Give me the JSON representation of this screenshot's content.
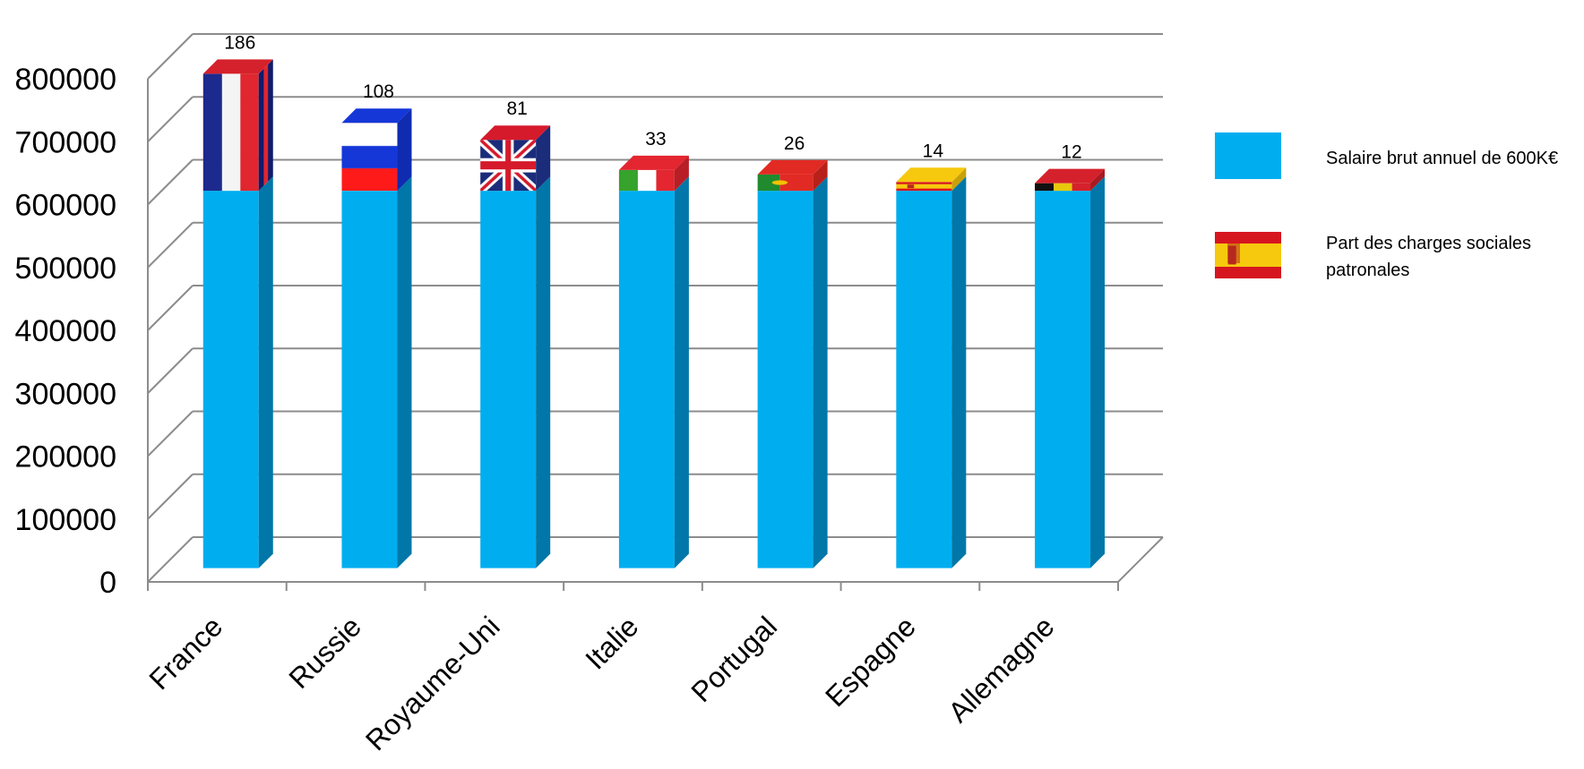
{
  "chart_data": {
    "type": "bar",
    "stacked": true,
    "three_d": true,
    "categories": [
      "France",
      "Russie",
      "Royaume-Uni",
      "Italie",
      "Portugal",
      "Espagne",
      "Allemagne"
    ],
    "series": [
      {
        "name": "Salaire brut annuel de 600K€",
        "color": "#00AEEF",
        "values": [
          600000,
          600000,
          600000,
          600000,
          600000,
          600000,
          600000
        ]
      },
      {
        "name": "Part des charges sociales patronales",
        "values": [
          186000,
          108000,
          81000,
          33000,
          26000,
          14000,
          12000
        ],
        "data_labels": [
          "186",
          "108",
          "81",
          "33",
          "26",
          "14",
          "12"
        ],
        "flags": [
          "france-flag",
          "russia-flag",
          "uk-flag",
          "italy-flag",
          "portugal-flag",
          "spain-flag",
          "germany-flag"
        ]
      }
    ],
    "y_ticks": [
      "0",
      "100000",
      "200000",
      "300000",
      "400000",
      "500000",
      "600000",
      "700000",
      "800000"
    ],
    "ylim": [
      0,
      800000
    ],
    "grid": true,
    "legend_position": "right",
    "title": "",
    "xlabel": "",
    "ylabel": ""
  }
}
